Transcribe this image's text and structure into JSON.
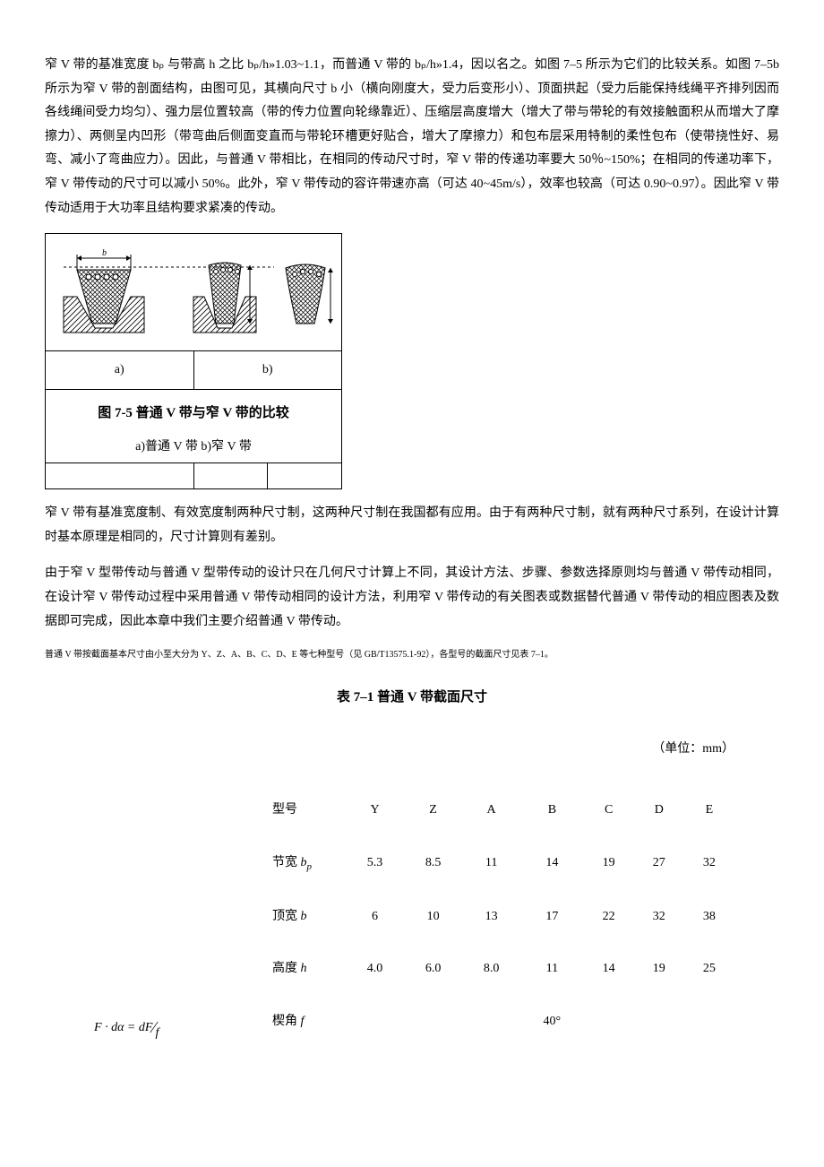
{
  "para1": "窄 V 带的基准宽度 bₚ 与带高 h 之比 bₚ/h»1.03~1.1，而普通 V 带的 bₚ/h»1.4，因以名之。如图 7–5 所示为它们的比较关系。如图 7–5b 所示为窄 V 带的剖面结构，由图可见，其横向尺寸 b 小（横向刚度大，受力后变形小）、顶面拱起（受力后能保持线绳平齐排列因而各线绳间受力均匀）、强力层位置较高（带的传力位置向轮缘靠近）、压缩层高度增大（增大了带与带轮的有效接触面积从而增大了摩擦力）、两侧呈内凹形（带弯曲后侧面变直而与带轮环槽更好贴合，增大了摩擦力）和包布层采用特制的柔性包布（使带挠性好、易弯、减小了弯曲应力）。因此，与普通 V 带相比，在相同的传动尺寸时，窄 V 带的传递功率要大 50％~150%；在相同的传递功率下，窄 V 带传动的尺寸可以减小 50%。此外，窄 V 带传动的容许带速亦高（可达 40~45m/s），效率也较高（可达 0.90~0.97）。因此窄 V 带传动适用于大功率且结构要求紧凑的传动。",
  "figure": {
    "label_a": "a)",
    "label_b": "b)",
    "title": "图 7-5  普通 V 带与窄 V 带的比较",
    "subtitle": "a)普通 V 带  b)窄 V 带"
  },
  "para2": "窄 V 带有基准宽度制、有效宽度制两种尺寸制，这两种尺寸制在我国都有应用。由于有两种尺寸制，就有两种尺寸系列，在设计计算时基本原理是相同的，尺寸计算则有差别。",
  "para3": "由于窄 V 型带传动与普通 V 型带传动的设计只在几何尺寸计算上不同，其设计方法、步骤、参数选择原则均与普通 V 带传动相同，在设计窄 V 带传动过程中采用普通 V 带传动相同的设计方法，利用窄 V 带传动的有关图表或数据替代普通 V 带传动的相应图表及数据即可完成，因此本章中我们主要介绍普通 V 带传动。",
  "small_note": "普通 V 带按截面基本尺寸由小至大分为 Y、Z、A、B、C、D、E 等七种型号（见 GB/T13575.1-92），各型号的截面尺寸见表 7–1。",
  "table_title": "表 7–1  普通 V 带截面尺寸",
  "unit": "（单位：mm）",
  "table": {
    "headers": [
      "型号",
      "Y",
      "Z",
      "A",
      "B",
      "C",
      "D",
      "E"
    ],
    "rows": [
      {
        "label_html": "节宽 <span class='it'>b<span class='sub'>p</span></span>",
        "cells": [
          "5.3",
          "8.5",
          "11",
          "14",
          "19",
          "27",
          "32"
        ]
      },
      {
        "label_html": "顶宽 <span class='it'>b</span>",
        "cells": [
          "6",
          "10",
          "13",
          "17",
          "22",
          "32",
          "38"
        ]
      },
      {
        "label_html": "高度 <span class='it'>h</span>",
        "cells": [
          "4.0",
          "6.0",
          "8.0",
          "11",
          "14",
          "19",
          "25"
        ]
      },
      {
        "label_html": "楔角 <span class='it'>f</span>",
        "cells": [
          "",
          "",
          "",
          "40°",
          "",
          "",
          ""
        ]
      }
    ]
  },
  "formula": "F · dα = dF⁄f",
  "diagram": {
    "hatch_color": "#000",
    "belt_fill": "#fff",
    "bg": "#fff",
    "stroke": "#000"
  }
}
